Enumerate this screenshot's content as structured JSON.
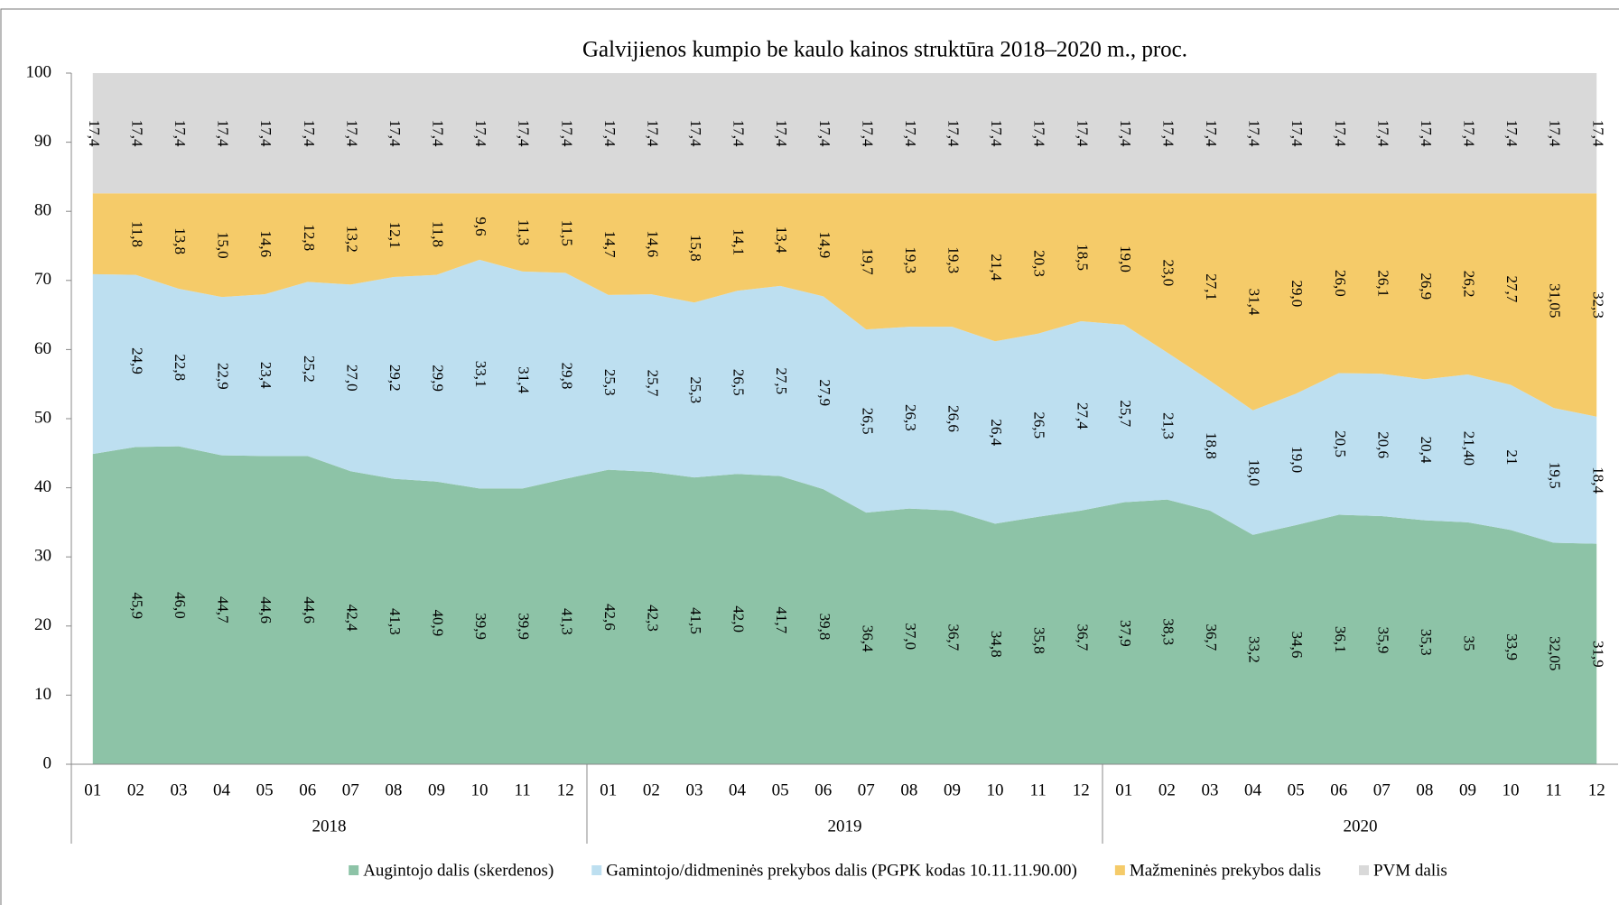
{
  "chart_data": {
    "type": "stacked_area",
    "title": "Galvijienos kumpio be kaulo kainos struktūra 2018–2020 m., proc.",
    "categories": [
      "01",
      "02",
      "03",
      "04",
      "05",
      "06",
      "07",
      "08",
      "09",
      "10",
      "11",
      "12",
      "01",
      "02",
      "03",
      "04",
      "05",
      "06",
      "07",
      "08",
      "09",
      "10",
      "11",
      "12",
      "01",
      "02",
      "03",
      "04",
      "05",
      "06",
      "07",
      "08",
      "09",
      "10",
      "11",
      "12"
    ],
    "groups": [
      "2018",
      "2019",
      "2020"
    ],
    "ylim": [
      0,
      100
    ],
    "yticks": [
      0,
      10,
      20,
      30,
      40,
      50,
      60,
      70,
      80,
      90,
      100
    ],
    "legend": "bottom",
    "series": [
      {
        "name": "Augintojo dalis (skerdenos)",
        "color": "#8dc3a7",
        "values": [
          44.9,
          45.9,
          46.0,
          44.7,
          44.6,
          44.6,
          42.4,
          41.3,
          40.9,
          39.9,
          39.9,
          41.3,
          42.6,
          42.3,
          41.5,
          42.0,
          41.7,
          39.8,
          36.4,
          37.0,
          36.7,
          34.8,
          35.8,
          36.7,
          37.9,
          38.3,
          36.7,
          33.2,
          34.6,
          36.1,
          35.9,
          35.3,
          35,
          33.9,
          32.05,
          31.9
        ],
        "value_labels": [
          null,
          "45,9",
          "46,0",
          "44,7",
          "44,6",
          "44,6",
          "42,4",
          "41,3",
          "40,9",
          "39,9",
          "39,9",
          "41,3",
          "42,6",
          "42,3",
          "41,5",
          "42,0",
          "41,7",
          "39,8",
          "36,4",
          "37,0",
          "36,7",
          "34,8",
          "35,8",
          "36,7",
          "37,9",
          "38,3",
          "36,7",
          "33,2",
          "34,6",
          "36,1",
          "35,9",
          "35,3",
          "35",
          "33,9",
          "32,05",
          "31,9"
        ]
      },
      {
        "name": "Gamintojo/didmeninės prekybos dalis (PGPK kodas 10.11.11.90.00)",
        "color": "#bddff0",
        "values": [
          26.0,
          24.9,
          22.8,
          22.9,
          23.4,
          25.2,
          27.0,
          29.2,
          29.9,
          33.1,
          31.4,
          29.8,
          25.3,
          25.7,
          25.3,
          26.5,
          27.5,
          27.9,
          26.5,
          26.3,
          26.6,
          26.4,
          26.5,
          27.4,
          25.7,
          21.3,
          18.8,
          18.0,
          19.0,
          20.5,
          20.6,
          20.4,
          21.4,
          21,
          19.5,
          18.4
        ],
        "value_labels": [
          null,
          "24,9",
          "22,8",
          "22,9",
          "23,4",
          "25,2",
          "27,0",
          "29,2",
          "29,9",
          "33,1",
          "31,4",
          "29,8",
          "25,3",
          "25,7",
          "25,3",
          "26,5",
          "27,5",
          "27,9",
          "26,5",
          "26,3",
          "26,6",
          "26,4",
          "26,5",
          "27,4",
          "25,7",
          "21,3",
          "18,8",
          "18,0",
          "19,0",
          "20,5",
          "20,6",
          "20,4",
          "21,40",
          "21",
          "19,5",
          "18,4"
        ]
      },
      {
        "name": "Mažmeninės prekybos dalis",
        "color": "#f5cb69",
        "values": [
          11.7,
          11.8,
          13.8,
          15.0,
          14.6,
          12.8,
          13.2,
          12.1,
          11.8,
          9.6,
          11.3,
          11.5,
          14.7,
          14.6,
          15.8,
          14.1,
          13.4,
          14.9,
          19.7,
          19.3,
          19.3,
          21.4,
          20.3,
          18.5,
          19.0,
          23.0,
          27.1,
          31.4,
          29.0,
          26.0,
          26.1,
          26.9,
          26.2,
          27.7,
          31.05,
          32.3
        ],
        "value_labels": [
          null,
          "11,8",
          "13,8",
          "15,0",
          "14,6",
          "12,8",
          "13,2",
          "12,1",
          "11,8",
          "9,6",
          "11,3",
          "11,5",
          "14,7",
          "14,6",
          "15,8",
          "14,1",
          "13,4",
          "14,9",
          "19,7",
          "19,3",
          "19,3",
          "21,4",
          "20,3",
          "18,5",
          "19,0",
          "23,0",
          "27,1",
          "31,4",
          "29,0",
          "26,0",
          "26,1",
          "26,9",
          "26,2",
          "27,7",
          "31,05",
          "32,3"
        ]
      },
      {
        "name": "PVM dalis",
        "color": "#d9d9d9",
        "values": [
          17.4,
          17.4,
          17.4,
          17.4,
          17.4,
          17.4,
          17.4,
          17.4,
          17.4,
          17.4,
          17.4,
          17.4,
          17.4,
          17.4,
          17.4,
          17.4,
          17.4,
          17.4,
          17.4,
          17.4,
          17.4,
          17.4,
          17.4,
          17.4,
          17.4,
          17.4,
          17.4,
          17.4,
          17.4,
          17.4,
          17.4,
          17.4,
          17.4,
          17.4,
          17.4,
          17.4
        ],
        "value_labels": [
          "17,4",
          "17,4",
          "17,4",
          "17,4",
          "17,4",
          "17,4",
          "17,4",
          "17,4",
          "17,4",
          "17,4",
          "17,4",
          "17,4",
          "17,4",
          "17,4",
          "17,4",
          "17,4",
          "17,4",
          "17,4",
          "17,4",
          "17,4",
          "17,4",
          "17,4",
          "17,4",
          "17,4",
          "17,4",
          "17,4",
          "17,4",
          "17,4",
          "17,4",
          "17,4",
          "17,4",
          "17,4",
          "17,4",
          "17,4",
          "17,4",
          "17,4"
        ]
      }
    ]
  }
}
